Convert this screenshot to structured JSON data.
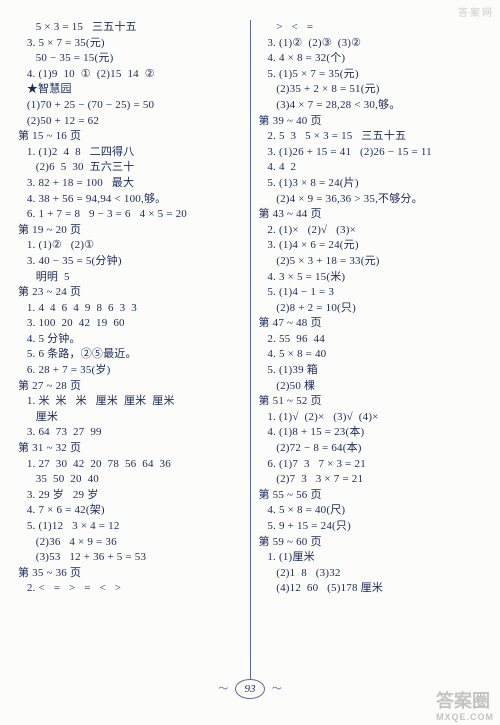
{
  "page_number": "93",
  "watermark_top": "答案网",
  "watermark_bottom_main": "答案圈",
  "watermark_bottom_sub": "MXQE.COM",
  "left_col": "      5 × 3 = 15   三五十五\n   3. 5 × 7 = 35(元)\n      50 − 35 = 15(元)\n   4. (1)9  10  ①  (2)15  14  ②\n   ★智慧园\n   (1)70 + 25 − (70 − 25) = 50\n   (2)50 + 12 = 62\n第 15 ~ 16 页\n   1. (1)2  4  8   二四得八\n      (2)6  5  30  五六三十\n   3. 82 + 18 = 100   最大\n   4. 38 + 56 = 94,94 < 100,够。\n   6. 1 + 7 = 8   9 − 3 = 6   4 × 5 = 20\n第 19 ~ 20 页\n   1. (1)②   (2)①\n   3. 40 − 35 = 5(分钟)\n      明明  5\n第 23 ~ 24 页\n   1. 4  4  6  4  9  8  6  3  3\n   3. 100  20  42  19  60\n   4. 5 分钟。\n   5. 6 条路，②⑤最近。\n   6. 28 + 7 = 35(岁)\n第 27 ~ 28 页\n   1. 米  米   米   厘米  厘米  厘米\n      厘米\n   3. 64  73  27  99\n第 31 ~ 32 页\n   1. 27  30  42  20  78  56  64  36\n      35  50  20  40\n   3. 29 岁   29 岁\n   4. 7 × 6 = 42(架)\n   5. (1)12   3 × 4 = 12\n      (2)36   4 × 9 = 36\n      (3)53   12 + 36 + 5 = 53\n第 35 ~ 36 页\n   2. <   =   >   =   <   >",
  "right_col": "      >   <   =\n   3. (1)②  (2)③  (3)②\n   4. 4 × 8 = 32(个)\n   5. (1)5 × 7 = 35(元)\n      (2)35 + 2 × 8 = 51(元)\n      (3)4 × 7 = 28,28 < 30,够。\n第 39 ~ 40 页\n   2. 5  3   5 × 3 = 15   三五十五\n   3. (1)26 + 15 = 41   (2)26 − 15 = 11\n   4. 4  2\n   5. (1)3 × 8 = 24(片)\n      (2)4 × 9 = 36,36 > 35,不够分。\n第 43 ~ 44 页\n   2. (1)×   (2)√   (3)×\n   3. (1)4 × 6 = 24(元)\n      (2)5 × 3 + 18 = 33(元)\n   4. 3 × 5 = 15(米)\n   5. (1)4 − 1 = 3\n      (2)8 + 2 = 10(只)\n第 47 ~ 48 页\n   2. 55  96  44\n   4. 5 × 8 = 40\n   5. (1)39 箱\n      (2)50 棵\n第 51 ~ 52 页\n   1. (1)√  (2)×   (3)√  (4)×\n   4. (1)8 + 15 = 23(本)\n      (2)72 − 8 = 64(本)\n   6. (1)7  3   7 × 3 = 21\n      (2)7  3   3 × 7 = 21\n第 55 ~ 56 页\n   4. 5 × 8 = 40(尺)\n   5. 9 + 15 = 24(只)\n第 59 ~ 60 页\n   1. (1)厘米\n      (2)1  8   (3)32\n      (4)12  60   (5)178 厘米"
}
